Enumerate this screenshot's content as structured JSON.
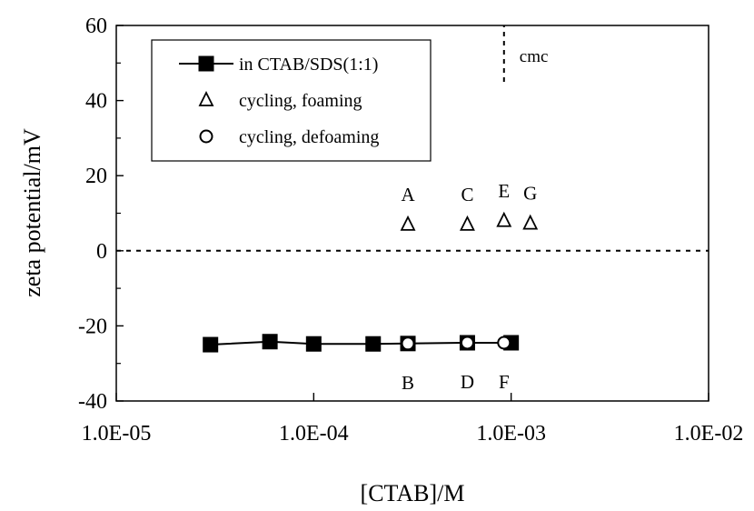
{
  "chart_data": {
    "type": "scatter",
    "xlabel": "[CTAB]/M",
    "ylabel": "zeta potential/mV",
    "x_scale": "log",
    "xlim": [
      1e-05,
      0.01
    ],
    "ylim": [
      -40,
      60
    ],
    "x_ticks": [
      "1.0E-05",
      "1.0E-04",
      "1.0E-03",
      "1.0E-02"
    ],
    "y_ticks": [
      "-40",
      "-20",
      "0",
      "20",
      "40",
      "60"
    ],
    "grid": false,
    "legend_position": "top-left",
    "series": [
      {
        "name": "in CTAB/SDS(1:1)",
        "marker": "filled-square",
        "line": true,
        "points": [
          {
            "x": 3e-05,
            "y": -25.0
          },
          {
            "x": 6e-05,
            "y": -24.2
          },
          {
            "x": 0.0001,
            "y": -24.8
          },
          {
            "x": 0.0002,
            "y": -24.8
          },
          {
            "x": 0.0003,
            "y": -24.7
          },
          {
            "x": 0.0006,
            "y": -24.5
          },
          {
            "x": 0.001,
            "y": -24.5
          }
        ]
      },
      {
        "name": "cycling, foaming",
        "marker": "open-triangle",
        "line": false,
        "points": [
          {
            "x": 0.0003,
            "y": 7.0,
            "label": "A"
          },
          {
            "x": 0.0006,
            "y": 7.0,
            "label": "C"
          },
          {
            "x": 0.00092,
            "y": 8.0,
            "label": "E"
          },
          {
            "x": 0.00125,
            "y": 7.3,
            "label": "G"
          }
        ]
      },
      {
        "name": "cycling, defoaming",
        "marker": "open-circle",
        "line": false,
        "points": [
          {
            "x": 0.0003,
            "y": -24.7,
            "label": "B"
          },
          {
            "x": 0.0006,
            "y": -24.5,
            "label": "D"
          },
          {
            "x": 0.00092,
            "y": -24.5,
            "label": "F"
          }
        ]
      }
    ],
    "reference_lines": [
      {
        "orientation": "horizontal",
        "y": 0,
        "style": "dashed"
      },
      {
        "orientation": "vertical",
        "x": 0.00092,
        "y_range": [
          45,
          60
        ],
        "style": "dashed",
        "label": "cmc"
      }
    ]
  },
  "colors": {
    "ink": "#000000",
    "background": "#ffffff"
  }
}
